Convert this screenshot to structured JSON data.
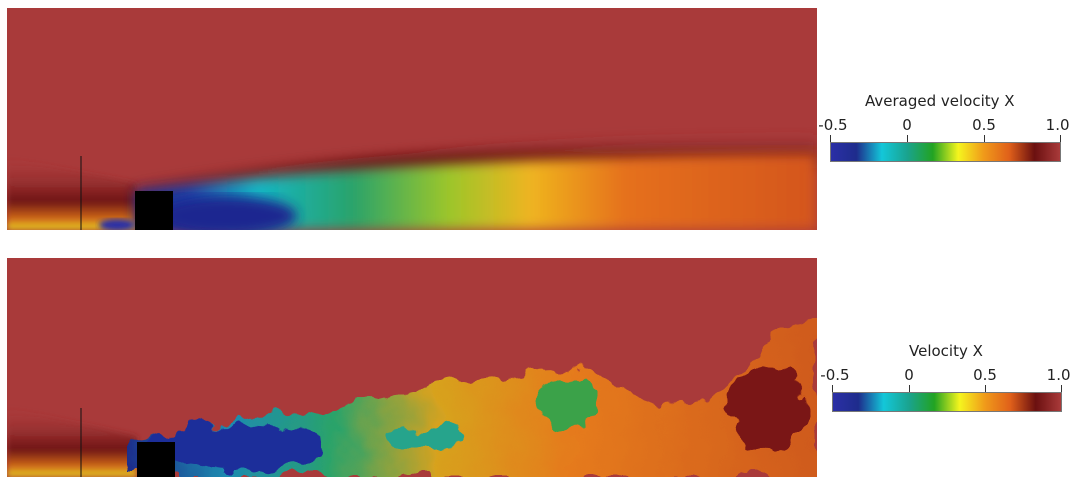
{
  "figures": [
    {
      "title": "Averaged velocity X",
      "field": "averaged",
      "colormap": [
        "#2b2fa6",
        "#1e2c8c",
        "#13c7d9",
        "#1aa38e",
        "#22a322",
        "#f5f51e",
        "#f09a1a",
        "#e0601a",
        "#6b1010",
        "#a93a3a"
      ],
      "ticks": [
        "-0.5",
        "0",
        "0.5",
        "1.0"
      ],
      "range": [
        -0.5,
        1.0
      ]
    },
    {
      "title": "Velocity X",
      "field": "instantaneous",
      "colormap": [
        "#2b2fa6",
        "#1e2c8c",
        "#13c7d9",
        "#1aa38e",
        "#22a322",
        "#f5f51e",
        "#f09a1a",
        "#e0601a",
        "#6b1010",
        "#a93a3a"
      ],
      "ticks": [
        "-0.5",
        "0",
        "0.5",
        "1.0"
      ],
      "range": [
        -0.5,
        1.0
      ]
    }
  ]
}
